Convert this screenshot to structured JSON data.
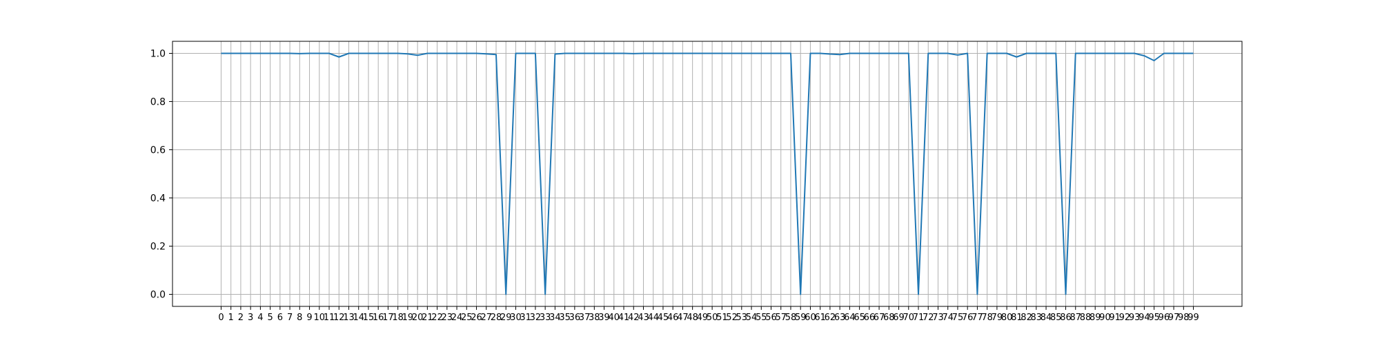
{
  "chart_data": {
    "type": "line",
    "title": "",
    "xlabel": "",
    "ylabel": "",
    "x": [
      0,
      1,
      2,
      3,
      4,
      5,
      6,
      7,
      8,
      9,
      10,
      11,
      12,
      13,
      14,
      15,
      16,
      17,
      18,
      19,
      20,
      21,
      22,
      23,
      24,
      25,
      26,
      27,
      28,
      29,
      30,
      31,
      32,
      33,
      34,
      35,
      36,
      37,
      38,
      39,
      40,
      41,
      42,
      43,
      44,
      45,
      46,
      47,
      48,
      49,
      50,
      51,
      52,
      53,
      54,
      55,
      56,
      57,
      58,
      59,
      60,
      61,
      62,
      63,
      64,
      65,
      66,
      67,
      68,
      69,
      70,
      71,
      72,
      73,
      74,
      75,
      76,
      77,
      78,
      79,
      80,
      81,
      82,
      83,
      84,
      85,
      86,
      87,
      88,
      89,
      90,
      91,
      92,
      93,
      94,
      95,
      96,
      97,
      98,
      99
    ],
    "x_ticks": [
      "0",
      "1",
      "2",
      "3",
      "4",
      "5",
      "6",
      "7",
      "8",
      "9",
      "10",
      "11",
      "12",
      "13",
      "14",
      "15",
      "16",
      "17",
      "18",
      "19",
      "20",
      "21",
      "22",
      "23",
      "24",
      "25",
      "26",
      "27",
      "28",
      "29",
      "30",
      "31",
      "32",
      "33",
      "34",
      "35",
      "36",
      "37",
      "38",
      "39",
      "40",
      "41",
      "42",
      "43",
      "44",
      "45",
      "46",
      "47",
      "48",
      "49",
      "50",
      "51",
      "52",
      "53",
      "54",
      "55",
      "56",
      "57",
      "58",
      "59",
      "60",
      "61",
      "62",
      "63",
      "64",
      "65",
      "66",
      "67",
      "68",
      "69",
      "70",
      "71",
      "72",
      "73",
      "74",
      "75",
      "76",
      "77",
      "78",
      "79",
      "80",
      "81",
      "82",
      "83",
      "84",
      "85",
      "86",
      "87",
      "88",
      "89",
      "90",
      "91",
      "92",
      "93",
      "94",
      "95",
      "96",
      "97",
      "98",
      "99"
    ],
    "y_ticks": [
      "0.0",
      "0.2",
      "0.4",
      "0.6",
      "0.8",
      "1.0"
    ],
    "xlim": [
      -4.95,
      103.95
    ],
    "ylim": [
      -0.05,
      1.05
    ],
    "grid": true,
    "series": [
      {
        "color": "#1f77b4",
        "values": [
          1.0,
          1.0,
          1.0,
          1.0,
          1.0,
          1.0,
          1.0,
          1.0,
          0.999,
          1.0,
          1.0,
          1.0,
          0.985,
          1.0,
          1.0,
          1.0,
          1.0,
          1.0,
          1.0,
          0.998,
          0.992,
          1.0,
          1.0,
          1.0,
          1.0,
          1.0,
          1.0,
          0.998,
          0.995,
          0.0,
          1.0,
          1.0,
          1.0,
          0.0,
          0.997,
          1.0,
          1.0,
          1.0,
          1.0,
          1.0,
          1.0,
          1.0,
          0.999,
          1.0,
          1.0,
          1.0,
          1.0,
          1.0,
          1.0,
          1.0,
          1.0,
          1.0,
          1.0,
          1.0,
          1.0,
          1.0,
          1.0,
          1.0,
          1.0,
          0.0,
          1.0,
          1.0,
          0.997,
          0.995,
          1.0,
          1.0,
          1.0,
          1.0,
          1.0,
          1.0,
          1.0,
          0.0,
          1.0,
          1.0,
          1.0,
          0.993,
          1.0,
          0.0,
          1.0,
          1.0,
          1.0,
          0.985,
          1.0,
          1.0,
          1.0,
          1.0,
          0.0,
          1.0,
          1.0,
          1.0,
          1.0,
          1.0,
          1.0,
          1.0,
          0.99,
          0.97,
          1.0,
          1.0,
          1.0,
          1.0
        ]
      }
    ]
  }
}
